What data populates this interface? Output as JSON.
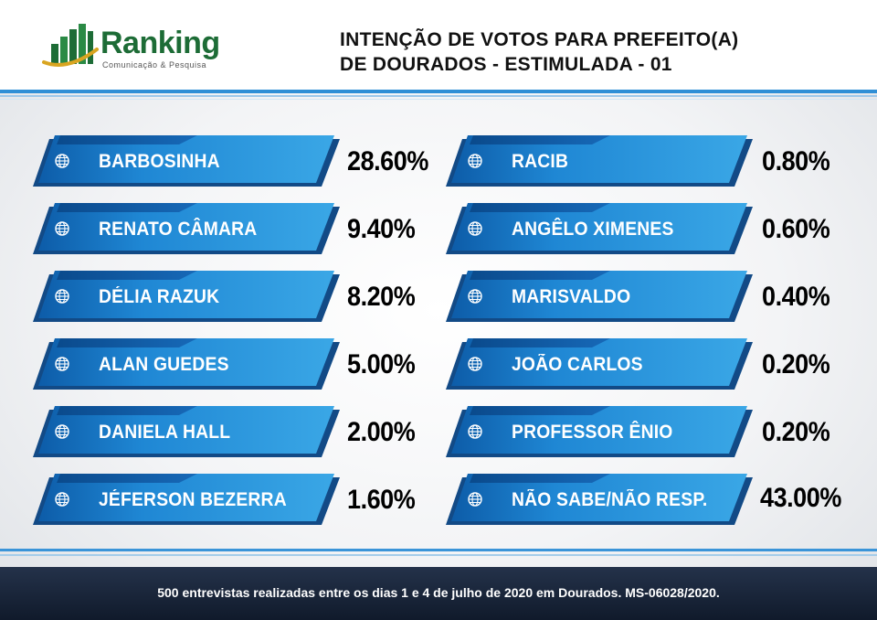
{
  "logo": {
    "name": "Ranking",
    "tagline": "Comunicação & Pesquisa"
  },
  "title": {
    "line1": "INTENÇÃO DE VOTOS PARA PREFEITO(A)",
    "line2": "DE DOURADOS - ESTIMULADA - 01"
  },
  "colors": {
    "banner_light": "#3aa7e6",
    "banner_dark": "#0d5ca8",
    "banner_shadow": "#124a86",
    "logo_green": "#1d6c36",
    "logo_gold": "#d9a521"
  },
  "left_column": [
    {
      "name": "BARBOSINHA",
      "percent": "28.60%"
    },
    {
      "name": "RENATO CÂMARA",
      "percent": "9.40%"
    },
    {
      "name": "DÉLIA RAZUK",
      "percent": "8.20%"
    },
    {
      "name": "ALAN GUEDES",
      "percent": "5.00%"
    },
    {
      "name": "DANIELA HALL",
      "percent": "2.00%"
    },
    {
      "name": "JÉFERSON BEZERRA",
      "percent": "1.60%"
    }
  ],
  "right_column": [
    {
      "name": "RACIB",
      "percent": "0.80%"
    },
    {
      "name": "ANGÊLO XIMENES",
      "percent": "0.60%"
    },
    {
      "name": "MARISVALDO",
      "percent": "0.40%"
    },
    {
      "name": "JOÃO CARLOS",
      "percent": "0.20%"
    },
    {
      "name": "PROFESSOR ÊNIO",
      "percent": "0.20%"
    },
    {
      "name": "NÃO SABE/NÃO RESP.",
      "percent": "43.00%"
    }
  ],
  "footer": {
    "text": "500 entrevistas realizadas entre os dias 1 e 4 de julho de 2020 em Dourados. MS-06028/2020."
  }
}
